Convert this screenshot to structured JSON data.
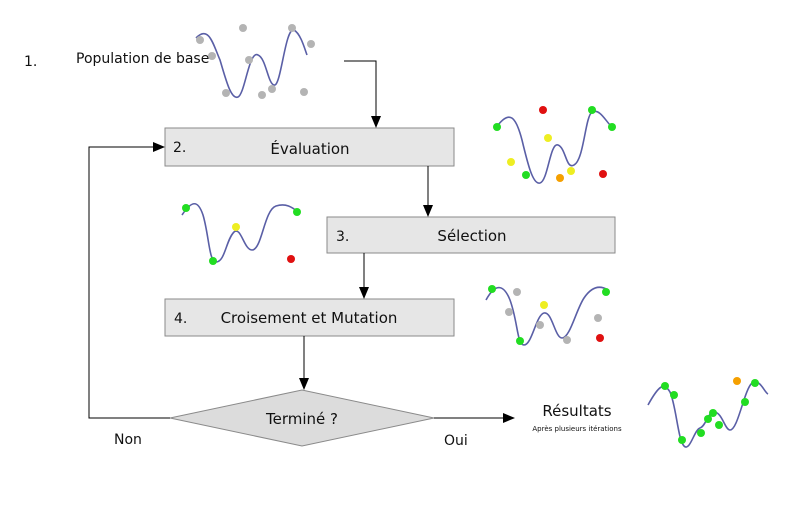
{
  "steps": {
    "population": {
      "number": "1.",
      "label": "Population de base"
    },
    "evaluation": {
      "number": "2.",
      "label": "Évaluation"
    },
    "selection": {
      "number": "3.",
      "label": "Sélection"
    },
    "croisement": {
      "number": "4.",
      "label": "Croisement et Mutation"
    }
  },
  "decision": {
    "label": "Terminé ?",
    "no_label": "Non",
    "yes_label": "Oui"
  },
  "result": {
    "title": "Résultats",
    "subtitle": "Après plusieurs itérations"
  },
  "colors": {
    "curve": "#5a5fa6",
    "box_fill": "#e6e6e6",
    "box_stroke": "#8a8a8a",
    "point_gray": "#b4b4b4",
    "point_green": "#22dd22",
    "point_yellow": "#eeee22",
    "point_orange": "#f5a000",
    "point_red": "#e01010"
  }
}
